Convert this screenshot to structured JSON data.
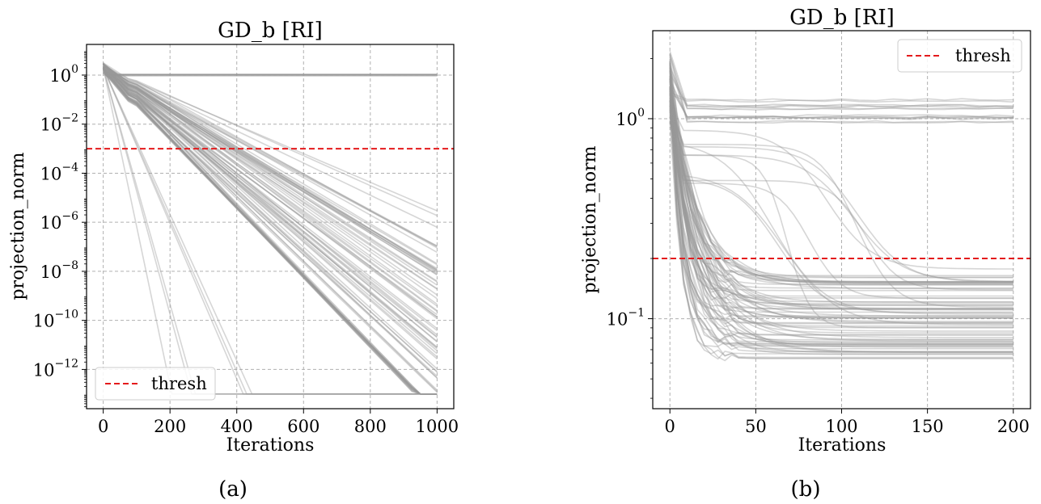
{
  "colors": {
    "curve": "#999999",
    "thresh": "#e41a1c",
    "grid": "#b0b0b0",
    "frame": "#000000"
  },
  "chart_data": [
    {
      "type": "line",
      "caption": "(a)",
      "title": "GD_b [RI]",
      "xlabel": "Iterations",
      "ylabel": "projection_norm",
      "yscale": "log",
      "xlim": [
        -50,
        1050
      ],
      "ylim_log10": [
        -13.6,
        1.25
      ],
      "xticks": [
        0,
        200,
        400,
        600,
        800,
        1000
      ],
      "xtick_labels": [
        "0",
        "200",
        "400",
        "600",
        "800",
        "1000"
      ],
      "yticks_log10": [
        0,
        -2,
        -4,
        -6,
        -8,
        -10,
        -12
      ],
      "ytick_labels": [
        {
          "base": "10",
          "exp": "0"
        },
        {
          "base": "10",
          "exp": "−2"
        },
        {
          "base": "10",
          "exp": "−4"
        },
        {
          "base": "10",
          "exp": "−6"
        },
        {
          "base": "10",
          "exp": "−8"
        },
        {
          "base": "10",
          "exp": "−10"
        },
        {
          "base": "10",
          "exp": "−12"
        }
      ],
      "grid": true,
      "legend": {
        "position": "lower-left",
        "entries": [
          "thresh"
        ]
      },
      "thresh_value": 0.001,
      "series_description": "about 200 gray runs; most decay linearly (log scale) toward the 1e-13 floor, a few stay flat near 1",
      "flat_runs": {
        "count": 10,
        "level_log10": [
          -0.04,
          0.04
        ]
      },
      "floor_log10": -13.0,
      "decaying_runs": {
        "count": 75,
        "start_log10": 0.3,
        "final_log10_range": [
          -13.0,
          -5.5
        ]
      }
    },
    {
      "type": "line",
      "caption": "(b)",
      "title": "GD_b [RI]",
      "xlabel": "Iterations",
      "ylabel": "projection_norm",
      "yscale": "log",
      "xlim": [
        -10,
        210
      ],
      "ylim_log10": [
        -1.45,
        0.44
      ],
      "xticks": [
        0,
        50,
        100,
        150,
        200
      ],
      "xtick_labels": [
        "0",
        "50",
        "100",
        "150",
        "200"
      ],
      "yticks_log10": [
        0,
        -1
      ],
      "ytick_labels": [
        {
          "base": "10",
          "exp": "0"
        },
        {
          "base": "10",
          "exp": "−1"
        }
      ],
      "grid": true,
      "legend": {
        "position": "top-right",
        "entries": [
          "thresh"
        ]
      },
      "thresh_value": 0.2,
      "series_description": "about 200 gray runs starting near 1.5, most dropping to 0.07–0.15 within ~40 iterations; some plateau near 1",
      "flat_runs": {
        "count": 14,
        "level_log10": [
          -0.02,
          0.1
        ]
      },
      "decaying_runs": {
        "count": 70,
        "start_log10": 0.15,
        "final_log10_range": [
          -1.2,
          -0.78
        ]
      },
      "late_drop_runs": {
        "count": 10,
        "final_log10_range": [
          -1.05,
          -0.75
        ]
      }
    }
  ]
}
